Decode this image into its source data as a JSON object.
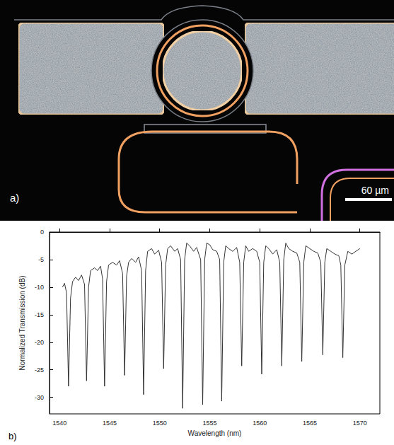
{
  "image_panel": {
    "label": "a)",
    "scale_bar": "60 µm"
  },
  "chart_data": {
    "type": "line",
    "label": "b)",
    "x_label": "Wavelength (nm)",
    "y_label": "Normalized Transmission (dB)",
    "x": [
      1540.3,
      1540.5,
      1540.7,
      1540.9,
      1541.1,
      1541.3,
      1541.6,
      1541.9,
      1542.2,
      1542.5,
      1542.7,
      1542.9,
      1543.1,
      1543.5,
      1543.8,
      1544.1,
      1544.3,
      1544.5,
      1544.7,
      1544.9,
      1545.3,
      1545.7,
      1546.0,
      1546.3,
      1546.5,
      1546.7,
      1546.9,
      1547.2,
      1547.6,
      1547.9,
      1548.2,
      1548.4,
      1548.6,
      1548.8,
      1549.2,
      1549.5,
      1549.9,
      1550.2,
      1550.4,
      1550.6,
      1550.8,
      1551.1,
      1551.5,
      1551.8,
      1552.1,
      1552.3,
      1552.5,
      1552.7,
      1553.0,
      1553.4,
      1553.7,
      1554.1,
      1554.3,
      1554.5,
      1554.7,
      1555.0,
      1555.3,
      1555.7,
      1556.0,
      1556.2,
      1556.4,
      1556.6,
      1556.9,
      1557.3,
      1557.7,
      1558.0,
      1558.2,
      1558.4,
      1558.6,
      1558.9,
      1559.3,
      1559.7,
      1560.0,
      1560.2,
      1560.4,
      1560.6,
      1560.9,
      1561.3,
      1561.7,
      1562.0,
      1562.2,
      1562.4,
      1562.6,
      1562.9,
      1563.3,
      1563.7,
      1564.0,
      1564.2,
      1564.4,
      1564.6,
      1565.0,
      1565.4,
      1565.8,
      1566.1,
      1566.3,
      1566.5,
      1566.7,
      1567.1,
      1567.5,
      1567.9,
      1568.1,
      1568.3,
      1568.5,
      1568.8,
      1569.2,
      1569.6,
      1570.0
    ],
    "series": [
      {
        "color": "#333333",
        "values": [
          -10,
          -9.3,
          -11,
          -28,
          -12,
          -9,
          -8.2,
          -8.8,
          -7.8,
          -9.5,
          -27,
          -10,
          -7,
          -6.5,
          -7,
          -6.2,
          -8.5,
          -28,
          -9,
          -6,
          -5.5,
          -6,
          -5.2,
          -7.5,
          -26,
          -8,
          -5.5,
          -4.8,
          -5.5,
          -4.5,
          -7,
          -29.5,
          -7,
          -3.5,
          -3,
          -4,
          -3.3,
          -5.5,
          -24.8,
          -6,
          -3,
          -2.5,
          -3.5,
          -3,
          -5,
          -32,
          -5,
          -2,
          -2.5,
          -3.5,
          -2.8,
          -5,
          -31.3,
          -5,
          -2,
          -2.3,
          -3.2,
          -3.5,
          -5,
          -30.7,
          -5.5,
          -2.5,
          -3,
          -3.5,
          -2.8,
          -5.5,
          -24.3,
          -5.5,
          -2.5,
          -3.5,
          -3,
          -3.5,
          -5.5,
          -25.8,
          -5.5,
          -2.5,
          -3,
          -4,
          -3.2,
          -5.5,
          -24.3,
          -5,
          -2,
          -3,
          -3.5,
          -3.8,
          -5.5,
          -23.5,
          -5.5,
          -2.5,
          -3,
          -3.5,
          -3.8,
          -5.5,
          -22.3,
          -5.5,
          -3,
          -3.5,
          -4,
          -4.3,
          -6,
          -22.8,
          -6,
          -3.5,
          -4,
          -3.5,
          -3
        ]
      }
    ],
    "xlim": [
      1539,
      1572
    ],
    "ylim": [
      -33,
      0
    ],
    "xticks": [
      1540,
      1545,
      1550,
      1555,
      1560,
      1565,
      1570
    ],
    "yticks": [
      -30,
      -25,
      -20,
      -15,
      -10,
      -5,
      0
    ],
    "grid": false
  }
}
